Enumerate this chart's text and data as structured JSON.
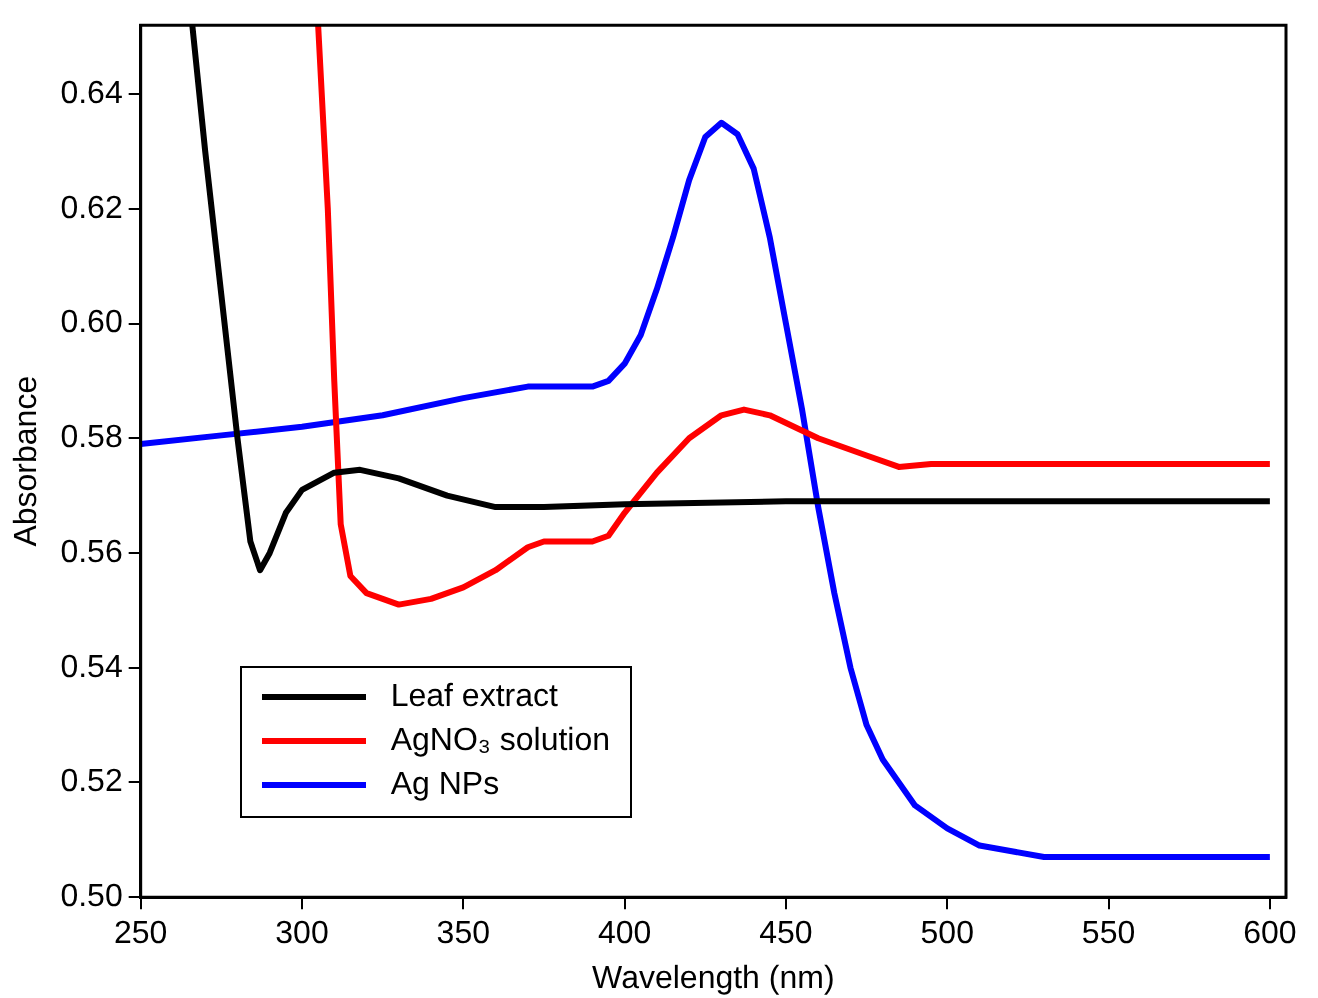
{
  "chart_data": {
    "type": "line",
    "xlabel": "Wavelength (nm)",
    "ylabel": "Absorbance",
    "xlim": [
      250,
      605
    ],
    "ylim": [
      0.5,
      0.652
    ],
    "xticks": [
      250,
      300,
      350,
      400,
      450,
      500,
      550,
      600
    ],
    "yticks": [
      {
        "value": 0.5,
        "label": "0.50"
      },
      {
        "value": 0.52,
        "label": "0.52"
      },
      {
        "value": 0.54,
        "label": "0.54"
      },
      {
        "value": 0.56,
        "label": "0.56"
      },
      {
        "value": 0.58,
        "label": "0.58"
      },
      {
        "value": 0.6,
        "label": "0.60"
      },
      {
        "value": 0.62,
        "label": "0.62"
      },
      {
        "value": 0.64,
        "label": "0.64"
      }
    ],
    "grid": false,
    "legend": "bottom left",
    "marker": "none",
    "line_style": "solid",
    "series": [
      {
        "name": "Leaf extract",
        "color": "#000000",
        "x": [
          266,
          270,
          275,
          280,
          284,
          287,
          290,
          295,
          300,
          310,
          318,
          330,
          345,
          360,
          375,
          400,
          450,
          500,
          600
        ],
        "values": [
          0.652,
          0.63,
          0.605,
          0.58,
          0.562,
          0.557,
          0.56,
          0.567,
          0.571,
          0.574,
          0.5745,
          0.573,
          0.57,
          0.568,
          0.568,
          0.5685,
          0.569,
          0.569,
          0.569
        ]
      },
      {
        "name": "AgNO₃ solution",
        "color": "#ff0000",
        "x": [
          305,
          308,
          310,
          312,
          315,
          320,
          330,
          340,
          350,
          360,
          370,
          375,
          390,
          395,
          400,
          410,
          420,
          430,
          437,
          445,
          460,
          475,
          485,
          495,
          600
        ],
        "values": [
          0.652,
          0.62,
          0.59,
          0.565,
          0.556,
          0.553,
          0.551,
          0.552,
          0.554,
          0.557,
          0.561,
          0.562,
          0.562,
          0.563,
          0.567,
          0.574,
          0.58,
          0.584,
          0.585,
          0.584,
          0.58,
          0.577,
          0.575,
          0.5755,
          0.5755
        ]
      },
      {
        "name": "Ag NPs",
        "color": "#0000ff",
        "x": [
          250,
          275,
          300,
          325,
          350,
          370,
          380,
          390,
          395,
          400,
          405,
          410,
          415,
          420,
          425,
          430,
          435,
          440,
          445,
          450,
          455,
          460,
          465,
          470,
          475,
          480,
          490,
          500,
          510,
          520,
          530,
          600
        ],
        "values": [
          0.579,
          0.5805,
          0.582,
          0.584,
          0.587,
          0.589,
          0.589,
          0.589,
          0.59,
          0.593,
          0.598,
          0.606,
          0.615,
          0.625,
          0.6325,
          0.635,
          0.633,
          0.627,
          0.615,
          0.6,
          0.585,
          0.568,
          0.553,
          0.54,
          0.53,
          0.524,
          0.516,
          0.512,
          0.509,
          0.508,
          0.507,
          0.507
        ]
      }
    ]
  }
}
